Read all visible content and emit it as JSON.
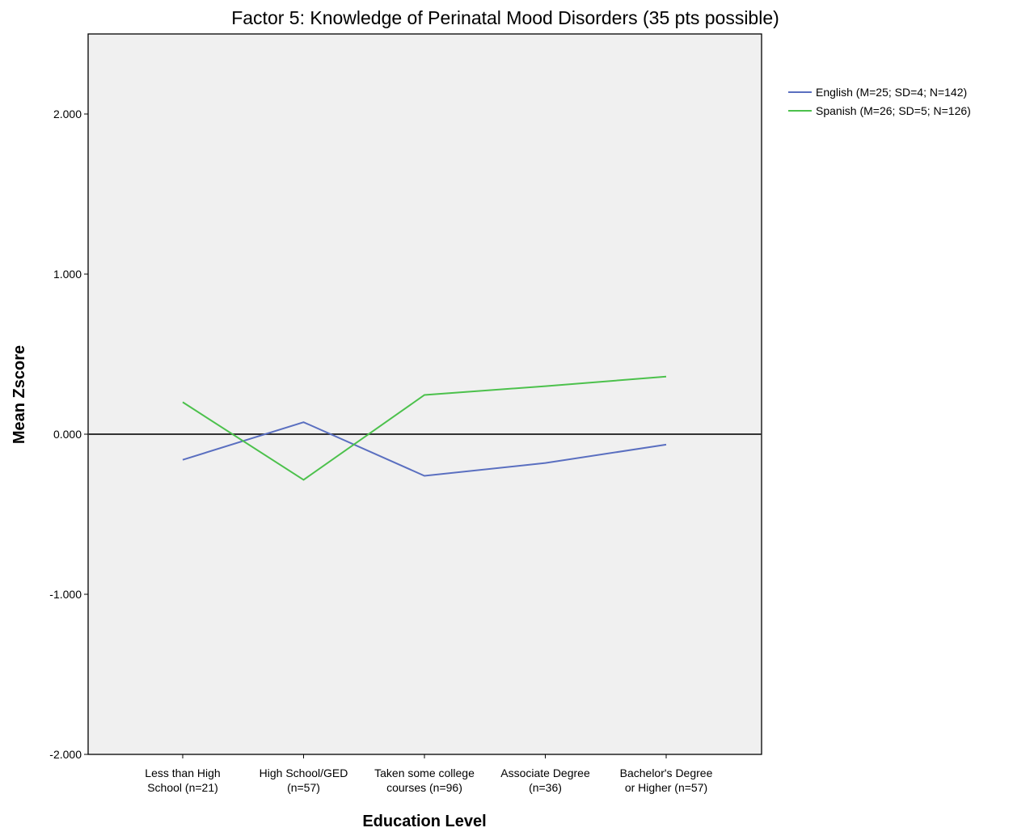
{
  "chart_data": {
    "type": "line",
    "title": "Factor 5:  Knowledge of Perinatal Mood Disorders (35 pts possible)",
    "xlabel": "Education Level",
    "ylabel": "Mean Zscore",
    "ylim": [
      -2,
      2.5
    ],
    "yticks": [
      {
        "value": 2,
        "label": "2.000"
      },
      {
        "value": 1,
        "label": "1.000"
      },
      {
        "value": 0,
        "label": "0.000"
      },
      {
        "value": -1,
        "label": "-1.000"
      },
      {
        "value": -2,
        "label": "-2.000"
      }
    ],
    "categories": [
      [
        "Less than High",
        "School (n=21)"
      ],
      [
        "High School/GED",
        "(n=57)"
      ],
      [
        "Taken some college",
        "courses (n=96)"
      ],
      [
        "Associate Degree",
        "(n=36)"
      ],
      [
        "Bachelor's Degree",
        "or Higher (n=57)"
      ]
    ],
    "series": [
      {
        "name": "English (M=25; SD=4; N=142)",
        "color": "#5a6fc0",
        "values": [
          -0.16,
          0.075,
          -0.26,
          -0.18,
          -0.065
        ]
      },
      {
        "name": "Spanish (M=26; SD=5; N=126)",
        "color": "#4cc14c",
        "values": [
          0.2,
          -0.285,
          0.245,
          0.3,
          0.36
        ]
      }
    ],
    "reference_line": {
      "value": 0,
      "color": "#333333"
    },
    "background": "#f0f0f0",
    "legend_position": "right"
  }
}
